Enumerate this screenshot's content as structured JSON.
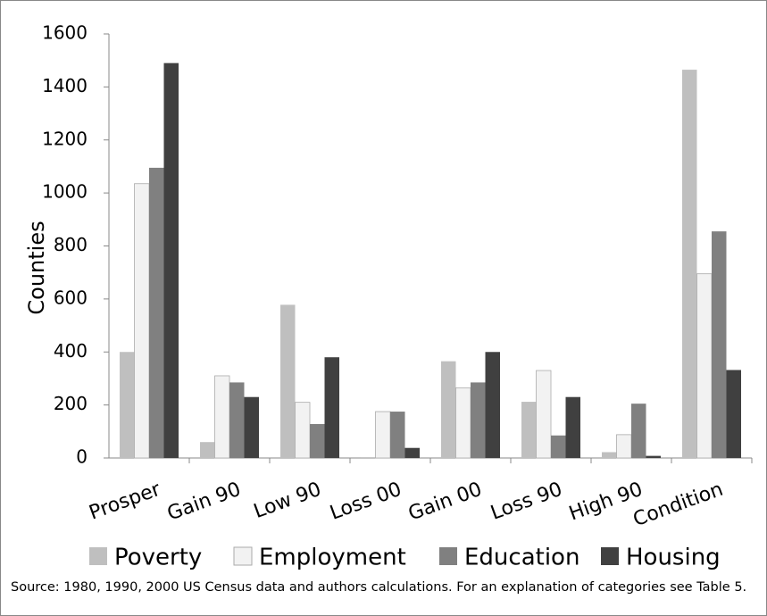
{
  "chart_data": {
    "type": "bar",
    "y_label": "Counties",
    "categories": [
      "Prosper",
      "Gain 90",
      "Low 90",
      "Loss 00",
      "Gain 00",
      "Loss 90",
      "High 90",
      "Condition"
    ],
    "series": [
      {
        "name": "Poverty",
        "color": "#bfbfbf",
        "values": [
          400,
          60,
          578,
          3,
          365,
          212,
          22,
          1465
        ]
      },
      {
        "name": "Employment",
        "color": "#f2f2f2",
        "values": [
          1035,
          310,
          210,
          175,
          265,
          330,
          88,
          695
        ]
      },
      {
        "name": "Education",
        "color": "#808080",
        "values": [
          1095,
          285,
          128,
          175,
          285,
          85,
          205,
          855
        ]
      },
      {
        "name": "Housing",
        "color": "#404040",
        "values": [
          1490,
          230,
          380,
          38,
          400,
          230,
          8,
          332
        ]
      }
    ],
    "ylim": [
      0,
      1600
    ],
    "yticks": [
      0,
      200,
      400,
      600,
      800,
      1000,
      1200,
      1400,
      1600
    ],
    "grid": false,
    "note": "Source: 1980, 1990, 2000 US Census data and authors calculations. For an explanation of categories see Table 5."
  }
}
